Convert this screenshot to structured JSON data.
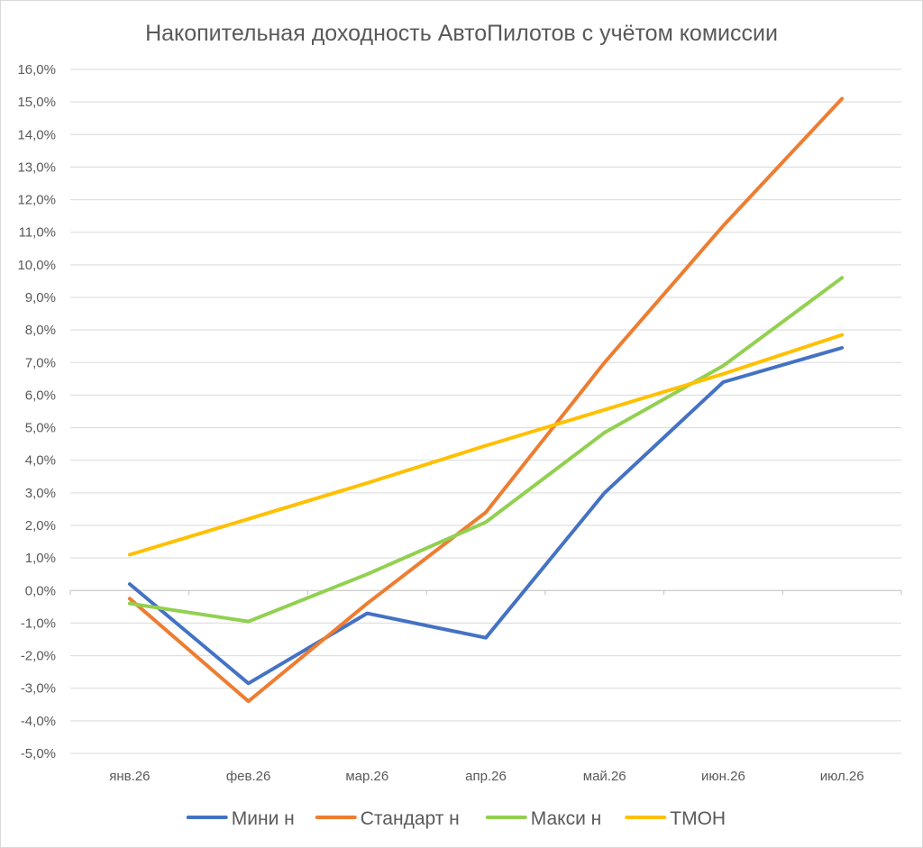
{
  "chart_data": {
    "type": "line",
    "title": "Накопительная доходность АвтоПилотов с учётом комиссии",
    "xlabel": "",
    "ylabel": "",
    "categories": [
      "янв.26",
      "фев.26",
      "мар.26",
      "апр.26",
      "май.26",
      "июн.26",
      "июл.26"
    ],
    "y_ticks": [
      -5,
      -4,
      -3,
      -2,
      -1,
      0,
      1,
      2,
      3,
      4,
      5,
      6,
      7,
      8,
      9,
      10,
      11,
      12,
      13,
      14,
      15,
      16
    ],
    "y_tick_labels": [
      "-5,0%",
      "-4,0%",
      "-3,0%",
      "-2,0%",
      "-1,0%",
      "0,0%",
      "1,0%",
      "2,0%",
      "3,0%",
      "4,0%",
      "5,0%",
      "6,0%",
      "7,0%",
      "8,0%",
      "9,0%",
      "10,0%",
      "11,0%",
      "12,0%",
      "13,0%",
      "14,0%",
      "15,0%",
      "16,0%"
    ],
    "ylim": [
      -5,
      16
    ],
    "grid": true,
    "legend_position": "bottom",
    "series": [
      {
        "name": "Мини н",
        "color": "#4472C4",
        "values": [
          0.2,
          -2.85,
          -0.7,
          -1.45,
          3.0,
          6.4,
          7.45
        ]
      },
      {
        "name": "Стандарт н",
        "color": "#ED7D31",
        "values": [
          -0.25,
          -3.4,
          -0.4,
          2.4,
          7.0,
          11.2,
          15.1
        ]
      },
      {
        "name": "Макси н",
        "color": "#92D050",
        "values": [
          -0.4,
          -0.95,
          0.5,
          2.1,
          4.85,
          6.9,
          9.6
        ]
      },
      {
        "name": "ТМОН",
        "color": "#FFC000",
        "values": [
          1.1,
          2.2,
          3.3,
          4.45,
          5.55,
          6.65,
          7.85
        ]
      }
    ]
  }
}
